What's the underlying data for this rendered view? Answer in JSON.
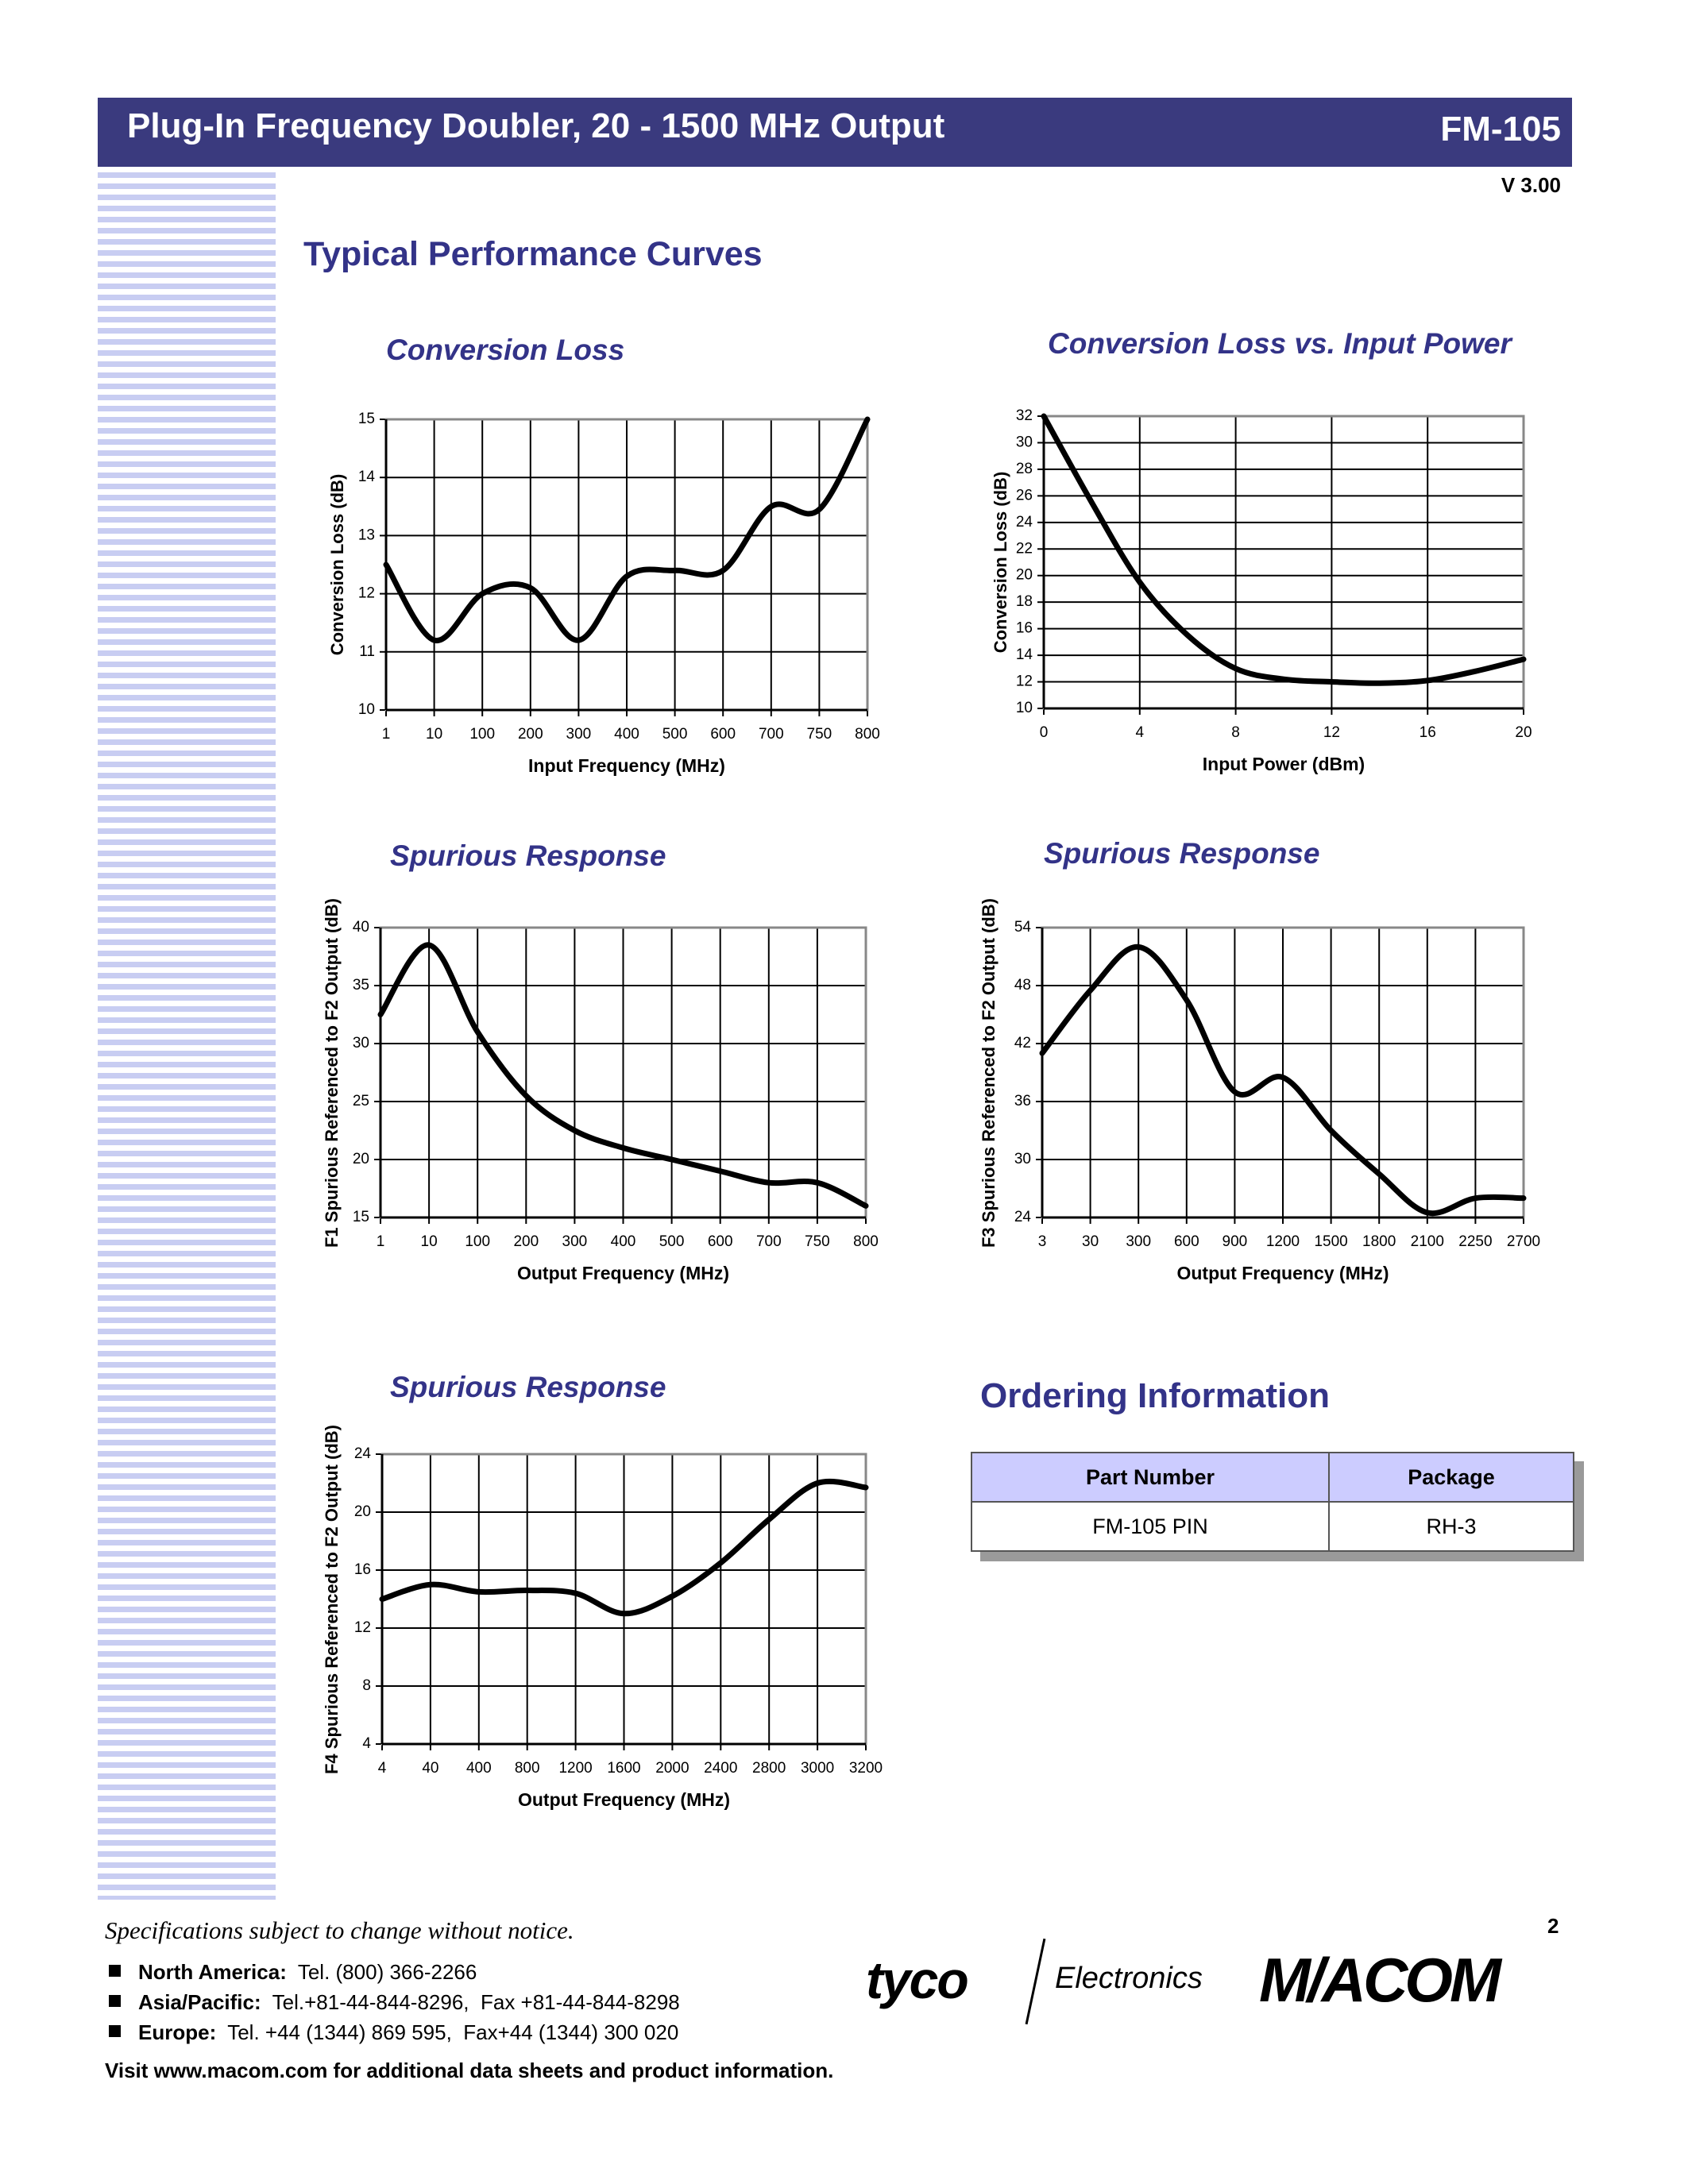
{
  "header": {
    "title": "Plug-In Frequency Doubler, 20 - 1500 MHz Output",
    "part": "FM-105",
    "version": "V 3.00"
  },
  "section_title": "Typical Performance Curves",
  "chart_data": [
    {
      "type": "line",
      "title": "Conversion Loss",
      "xlabel": "Input Frequency (MHz)",
      "ylabel": "Conversion Loss (dB)",
      "categories": [
        "1",
        "10",
        "100",
        "200",
        "300",
        "400",
        "500",
        "600",
        "700",
        "750",
        "800"
      ],
      "series": [
        {
          "color": "#000000",
          "values": [
            12.5,
            11.2,
            12.0,
            12.1,
            11.2,
            12.3,
            12.4,
            12.4,
            13.5,
            13.45,
            15.0
          ]
        }
      ],
      "ylim": [
        10,
        15
      ],
      "yticks": [
        10,
        11,
        12,
        13,
        14,
        15
      ],
      "grid": true
    },
    {
      "type": "line",
      "title": "Conversion Loss vs. Input Power",
      "xlabel": "Input Power (dBm)",
      "ylabel": "Conversion Loss (dB)",
      "x": [
        0,
        2,
        4,
        6,
        8,
        10,
        12,
        14,
        16,
        18,
        20
      ],
      "series": [
        {
          "color": "#000000",
          "values": [
            32,
            25.5,
            19.5,
            15.5,
            13.0,
            12.2,
            12.0,
            11.9,
            12.1,
            12.8,
            13.7
          ]
        }
      ],
      "xlim": [
        0,
        20
      ],
      "xticks": [
        0,
        4,
        8,
        12,
        16,
        20
      ],
      "ylim": [
        10,
        32
      ],
      "yticks": [
        10,
        12,
        14,
        16,
        18,
        20,
        22,
        24,
        26,
        28,
        30,
        32
      ],
      "grid": true
    },
    {
      "type": "line",
      "title": "Spurious Response",
      "xlabel": "Output Frequency (MHz)",
      "ylabel": "F1 Spurious Referenced to F2 Output (dB)",
      "categories": [
        "1",
        "10",
        "100",
        "200",
        "300",
        "400",
        "500",
        "600",
        "700",
        "750",
        "800"
      ],
      "series": [
        {
          "color": "#000000",
          "values": [
            32.5,
            38.5,
            31.0,
            25.5,
            22.5,
            21.0,
            20.0,
            19.0,
            18.0,
            18.0,
            16.0
          ]
        }
      ],
      "ylim": [
        15,
        40
      ],
      "yticks": [
        15,
        20,
        25,
        30,
        35,
        40
      ],
      "grid": true
    },
    {
      "type": "line",
      "title": "Spurious Response",
      "xlabel": "Output Frequency (MHz)",
      "ylabel": "F3 Spurious Referenced to F2 Output (dB)",
      "categories": [
        "3",
        "30",
        "300",
        "600",
        "900",
        "1200",
        "1500",
        "1800",
        "2100",
        "2250",
        "2700"
      ],
      "series": [
        {
          "color": "#000000",
          "values": [
            41.0,
            47.5,
            52.0,
            46.5,
            37.0,
            38.5,
            33.0,
            28.5,
            24.5,
            26.0,
            26.0
          ]
        }
      ],
      "ylim": [
        24,
        54
      ],
      "yticks": [
        24,
        30,
        36,
        42,
        48,
        54
      ],
      "grid": true
    },
    {
      "type": "line",
      "title": "Spurious Response",
      "xlabel": "Output Frequency (MHz)",
      "ylabel": "F4 Spurious Referenced to F2 Output (dB)",
      "categories": [
        "4",
        "40",
        "400",
        "800",
        "1200",
        "1600",
        "2000",
        "2400",
        "2800",
        "3000",
        "3200"
      ],
      "series": [
        {
          "color": "#000000",
          "values": [
            14.0,
            15.0,
            14.5,
            14.6,
            14.4,
            13.0,
            14.2,
            16.5,
            19.5,
            22.0,
            21.7
          ]
        }
      ],
      "ylim": [
        4,
        24
      ],
      "yticks": [
        4,
        8,
        12,
        16,
        20,
        24
      ],
      "grid": true
    }
  ],
  "ordering": {
    "title": "Ordering Information",
    "columns": [
      "Part Number",
      "Package"
    ],
    "rows": [
      [
        "FM-105 PIN",
        "RH-3"
      ]
    ]
  },
  "footer": {
    "note": "Specifications subject to change without notice.",
    "page": 2,
    "contacts": [
      {
        "region": "North America:",
        "text": "Tel. (800) 366-2266"
      },
      {
        "region": "Asia/Pacific:",
        "text": "Tel.+81-44-844-8296,  Fax +81-44-844-8298"
      },
      {
        "region": "Europe:",
        "text": "Tel. +44 (1344) 869 595,  Fax+44 (1344) 300 020"
      }
    ],
    "visit": "Visit www.macom.com for additional data sheets and product information.",
    "logos": [
      "tyco",
      "Electronics",
      "M/ACOM"
    ]
  }
}
